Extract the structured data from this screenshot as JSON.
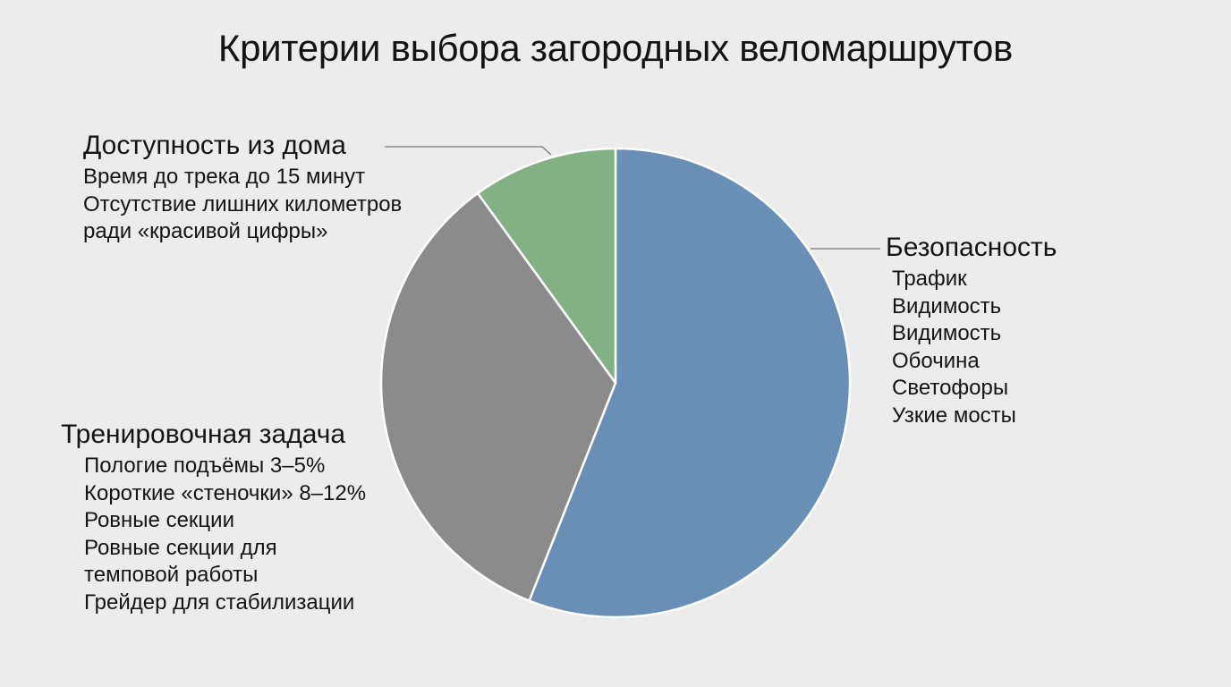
{
  "colors": {
    "background": "#ececec",
    "safety": "#6a8fb6",
    "training": "#8b8b8b",
    "access": "#81b185",
    "slice_border": "#ffffff",
    "leader": "#777777"
  },
  "chart_data": {
    "type": "pie",
    "title": "Критерии выбора загородных веломаршрутов",
    "start_angle_deg": 0,
    "direction": "clockwise",
    "slices": [
      {
        "key": "safety",
        "label": "Безопасность",
        "value": 56,
        "color": "#6a8fb6",
        "items": [
          "Трафик",
          "Видимость",
          "Видимость",
          "Обочина",
          "Светофоры",
          "Узкие мосты"
        ]
      },
      {
        "key": "training",
        "label": "Тренировочная задача",
        "value": 34,
        "color": "#8b8b8b",
        "items": [
          "Пологие подъёмы 3–5%",
          "Короткие «стеночки» 8–12%",
          "Ровные секции",
          "Ровные секции для",
          "темповой работы",
          "Грейдер для стабилизации"
        ]
      },
      {
        "key": "access",
        "label": "Доступность из дома",
        "value": 10,
        "color": "#81b185",
        "items": [
          "Время до трека до 15 минут",
          "Отсутствие лишних километров",
          "ради «красивой цифры»"
        ]
      }
    ]
  }
}
